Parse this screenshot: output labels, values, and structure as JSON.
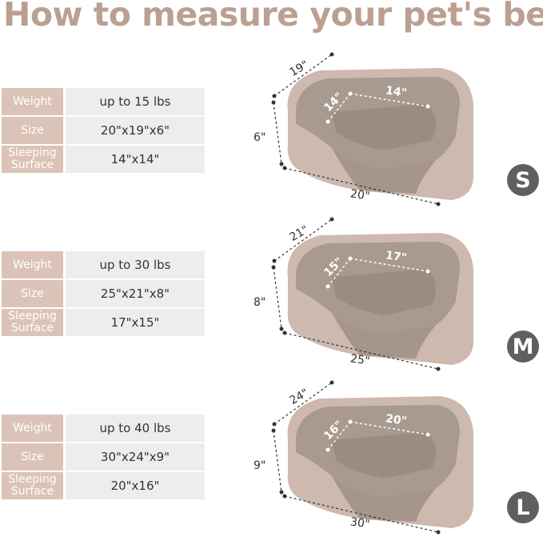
{
  "title": "How to measure your pet's bed",
  "colors": {
    "title": "#bba092",
    "label_cell": "#dcc3b7",
    "value_cell": "#ededed",
    "badge": "#5f5f5f",
    "bed_outer": "#cdb9ad",
    "bed_fur": "#9b8b80"
  },
  "sizes": [
    {
      "badge": "S",
      "rows": [
        {
          "label": "Weight",
          "value": "up to 15 lbs"
        },
        {
          "label": "Size",
          "value": "20\"x19\"x6\""
        },
        {
          "label": "Sleeping Surface",
          "value": "14\"x14\""
        }
      ],
      "dims": {
        "depth": "19\"",
        "height": "6\"",
        "length": "20\"",
        "inner_depth": "14\"",
        "inner_width": "14\""
      }
    },
    {
      "badge": "M",
      "rows": [
        {
          "label": "Weight",
          "value": "up to 30 lbs"
        },
        {
          "label": "Size",
          "value": "25\"x21\"x8\""
        },
        {
          "label": "Sleeping Surface",
          "value": "17\"x15\""
        }
      ],
      "dims": {
        "depth": "21\"",
        "height": "8\"",
        "length": "25\"",
        "inner_depth": "15\"",
        "inner_width": "17\""
      }
    },
    {
      "badge": "L",
      "rows": [
        {
          "label": "Weight",
          "value": "up to 40 lbs"
        },
        {
          "label": "Size",
          "value": "30\"x24\"x9\""
        },
        {
          "label": "Sleeping Surface",
          "value": "20\"x16\""
        }
      ],
      "dims": {
        "depth": "24\"",
        "height": "9\"",
        "length": "30\"",
        "inner_depth": "16\"",
        "inner_width": "20\""
      }
    }
  ]
}
